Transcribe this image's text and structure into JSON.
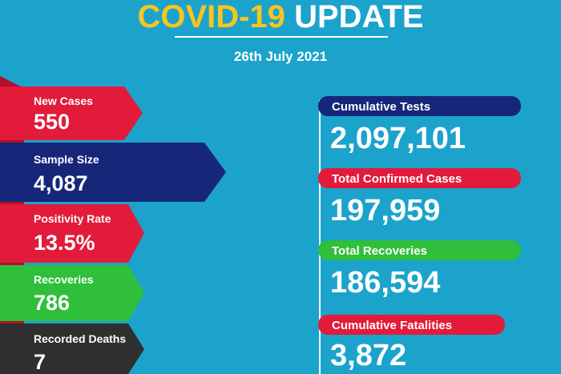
{
  "header": {
    "title_highlight": "COVID-19",
    "title_rest": "UPDATE",
    "date": "26th July 2021"
  },
  "daily": [
    {
      "label": "New Cases",
      "value": "550"
    },
    {
      "label": "Sample Size",
      "value": "4,087"
    },
    {
      "label": "Positivity Rate",
      "value": "13.5%"
    },
    {
      "label": "Recoveries",
      "value": "786"
    },
    {
      "label": "Recorded Deaths",
      "value": "7"
    }
  ],
  "cumulative": [
    {
      "label": "Cumulative Tests",
      "value": "2,097,101"
    },
    {
      "label": "Total Confirmed Cases",
      "value": "197,959"
    },
    {
      "label": "Total Recoveries",
      "value": "186,594"
    },
    {
      "label": "Cumulative Fatalities",
      "value": "3,872"
    }
  ]
}
